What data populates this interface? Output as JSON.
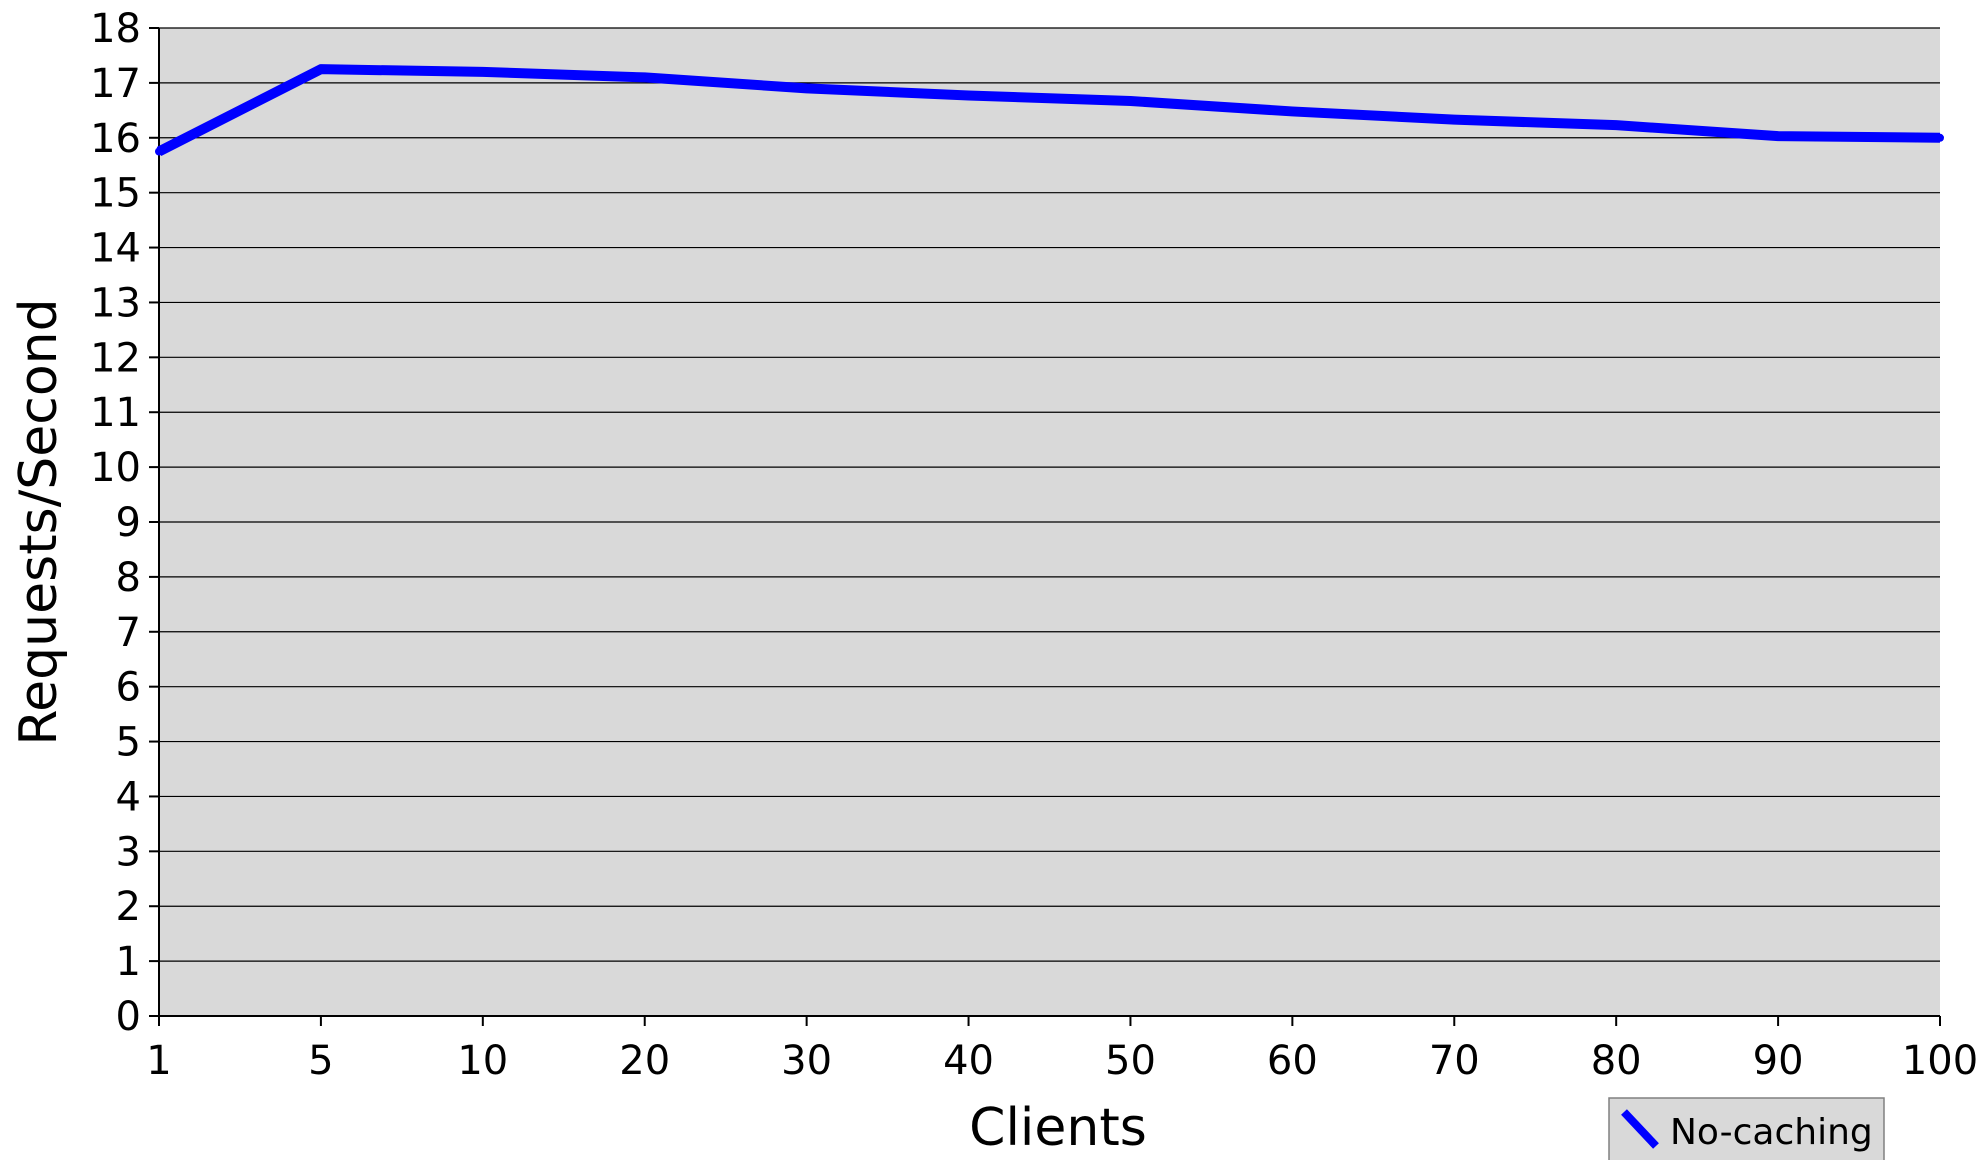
{
  "chart_data": {
    "type": "line",
    "title": "",
    "xlabel": "Clients",
    "ylabel": "Requests/Second",
    "categories": [
      "1",
      "5",
      "10",
      "20",
      "30",
      "40",
      "50",
      "60",
      "70",
      "80",
      "90",
      "100"
    ],
    "series": [
      {
        "name": "No-caching",
        "color": "#0000ff",
        "values": [
          15.75,
          17.25,
          17.2,
          17.1,
          16.9,
          16.77,
          16.67,
          16.48,
          16.33,
          16.23,
          16.03,
          16.0
        ]
      }
    ],
    "ylim": [
      0,
      18
    ],
    "yticks": [
      "0",
      "1",
      "2",
      "3",
      "4",
      "5",
      "6",
      "7",
      "8",
      "9",
      "10",
      "11",
      "12",
      "13",
      "14",
      "15",
      "16",
      "17",
      "18"
    ],
    "grid": true,
    "plot_background": "#d9d9d9",
    "legend_position": "bottom-right"
  }
}
